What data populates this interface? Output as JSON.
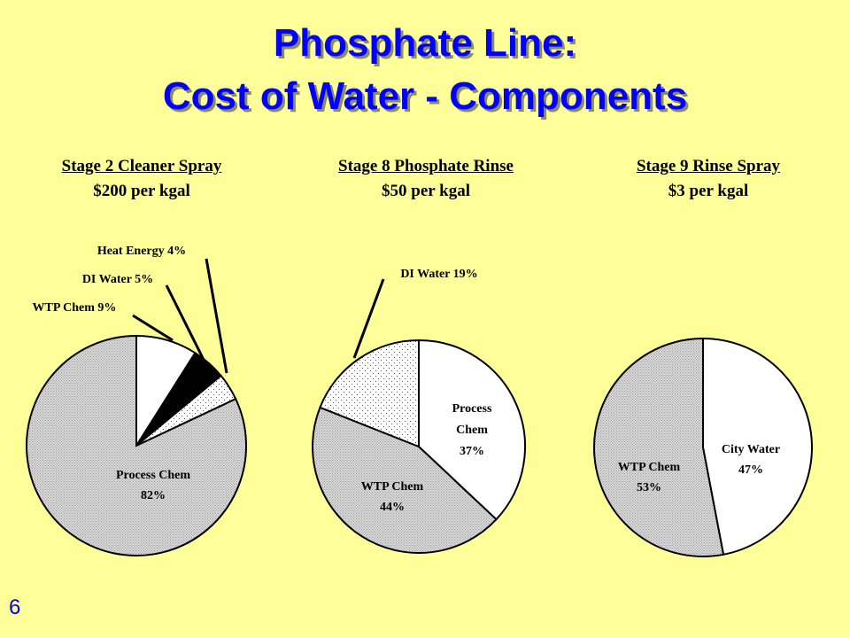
{
  "title": {
    "line1": "Phosphate Line:",
    "line2": "Cost of Water - Components"
  },
  "slide_number": "6",
  "colors": {
    "background": "#ffff99",
    "title": "#0000ff"
  },
  "chart_data": [
    {
      "type": "pie",
      "title": "Stage 2 Cleaner Spray",
      "subtitle": "$200 per kgal",
      "slices": [
        {
          "label": "WTP Chem",
          "value": 9,
          "text": "WTP Chem  9%",
          "fill": "white"
        },
        {
          "label": "DI Water",
          "value": 5,
          "text": "DI Water 5%",
          "fill": "black"
        },
        {
          "label": "Heat Energy",
          "value": 4,
          "text": "Heat Energy 4%",
          "fill": "dots"
        },
        {
          "label": "Process Chem",
          "value": 82,
          "text": [
            "Process Chem",
            "82%"
          ],
          "fill": "dense"
        }
      ]
    },
    {
      "type": "pie",
      "title": "Stage 8 Phosphate Rinse",
      "subtitle": "$50 per kgal",
      "slices": [
        {
          "label": "Process Chem",
          "value": 37,
          "text": [
            "Process",
            "Chem",
            "37%"
          ],
          "fill": "white"
        },
        {
          "label": "WTP Chem",
          "value": 44,
          "text": [
            "WTP Chem",
            "44%"
          ],
          "fill": "dense"
        },
        {
          "label": "DI Water",
          "value": 19,
          "text": "DI Water 19%",
          "fill": "dots"
        }
      ]
    },
    {
      "type": "pie",
      "title": "Stage 9 Rinse Spray",
      "subtitle": "$3 per kgal",
      "slices": [
        {
          "label": "City Water",
          "value": 47,
          "text": [
            "City Water",
            "47%"
          ],
          "fill": "white"
        },
        {
          "label": "WTP Chem",
          "value": 53,
          "text": [
            "WTP Chem",
            "53%"
          ],
          "fill": "dense"
        }
      ]
    }
  ]
}
